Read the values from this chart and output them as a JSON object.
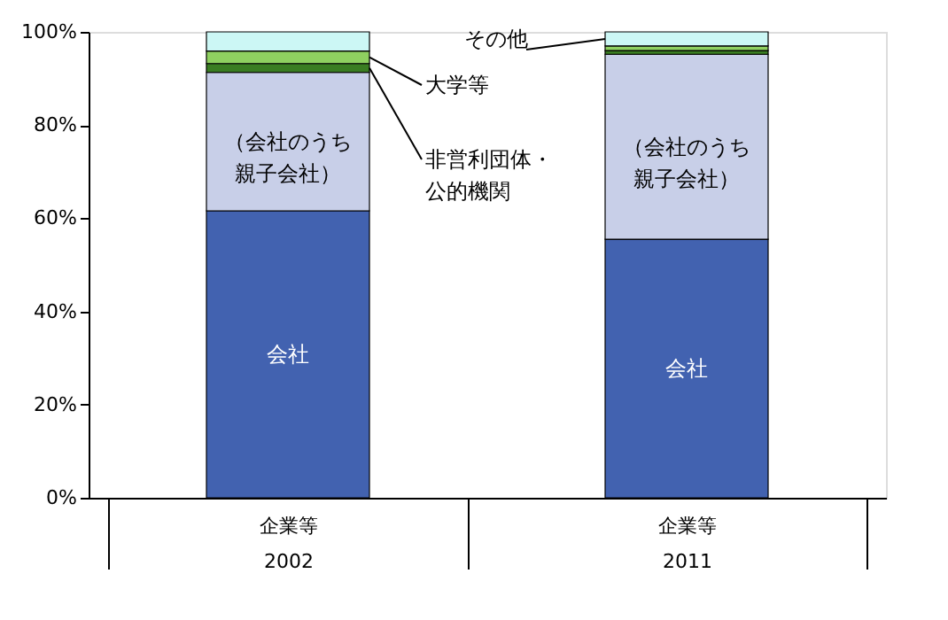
{
  "chart_data": {
    "type": "bar",
    "stacked": true,
    "categories": [
      "企業等\n2002",
      "企業等\n2011"
    ],
    "series": [
      {
        "name": "会社",
        "color": "#4262b0",
        "values": [
          61.6,
          55.5
        ]
      },
      {
        "name": "（会社のうち親子会社）",
        "color": "#c8cfe8",
        "values": [
          29.7,
          39.7
        ]
      },
      {
        "name": "非営利団体・公的機関",
        "color": "#3a7d22",
        "values": [
          1.9,
          0.8
        ]
      },
      {
        "name": "大学等",
        "color": "#8fd060",
        "values": [
          2.7,
          1.0
        ]
      },
      {
        "name": "その他",
        "color": "#ccf7f5",
        "values": [
          4.1,
          3.0
        ]
      }
    ],
    "ylim": [
      0,
      100
    ],
    "yticks": [
      {
        "value": 0,
        "label": "0%"
      },
      {
        "value": 20,
        "label": "20%"
      },
      {
        "value": 40,
        "label": "40%"
      },
      {
        "value": 60,
        "label": "60%"
      },
      {
        "value": 80,
        "label": "80%"
      },
      {
        "value": 100,
        "label": "100%"
      }
    ],
    "grid": false
  }
}
